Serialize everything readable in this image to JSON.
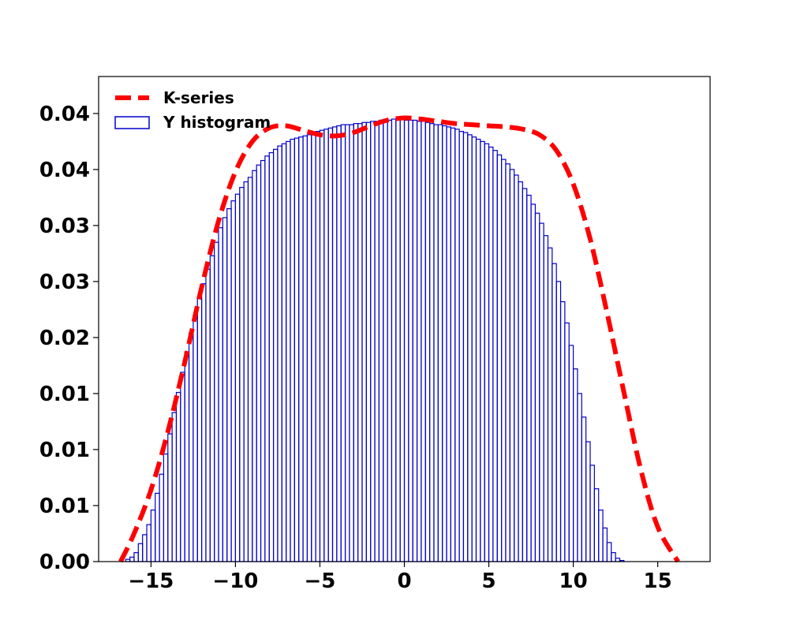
{
  "chart_data": {
    "type": "bar",
    "title": "",
    "xlabel": "",
    "ylabel": "",
    "xlim": [
      -18.1,
      18.1
    ],
    "ylim": [
      0,
      0.0433
    ],
    "xticks": [
      -15,
      -10,
      -5,
      0,
      5,
      10,
      15
    ],
    "xtick_labels": [
      "−15",
      "−10",
      "−5",
      "0",
      "5",
      "10",
      "15"
    ],
    "yticks": [
      0,
      0.005,
      0.01,
      0.015,
      0.02,
      0.025,
      0.03,
      0.035,
      0.04
    ],
    "ytick_labels": [
      "0.00",
      "0.01",
      "0.01",
      "0.01",
      "0.02",
      "0.03",
      "0.03",
      "0.04",
      "0.04"
    ],
    "grid": false,
    "legend_position": "top-left",
    "colors": {
      "histogram": "#0000cc",
      "curve": "#ff0000"
    },
    "series": [
      {
        "name": "Y histogram",
        "kind": "histogram",
        "bin_start": -16.5,
        "bin_width": 0.25,
        "values": [
          0.0002,
          0.0004,
          0.0008,
          0.0016,
          0.0024,
          0.0033,
          0.0046,
          0.0061,
          0.0078,
          0.0096,
          0.0114,
          0.0133,
          0.0151,
          0.0169,
          0.0187,
          0.0204,
          0.022,
          0.0235,
          0.0248,
          0.0261,
          0.0273,
          0.0285,
          0.0298,
          0.0307,
          0.0315,
          0.0322,
          0.0328,
          0.0334,
          0.0339,
          0.0343,
          0.0349,
          0.0354,
          0.0358,
          0.0362,
          0.0365,
          0.0368,
          0.0371,
          0.0373,
          0.0375,
          0.0377,
          0.0378,
          0.0379,
          0.038,
          0.0381,
          0.0383,
          0.0384,
          0.0385,
          0.0386,
          0.0387,
          0.0388,
          0.0389,
          0.039,
          0.039,
          0.039,
          0.0391,
          0.0391,
          0.0392,
          0.0392,
          0.0393,
          0.0393,
          0.0394,
          0.0394,
          0.0394,
          0.0395,
          0.0395,
          0.0395,
          0.0394,
          0.0394,
          0.0394,
          0.0393,
          0.0393,
          0.0392,
          0.0391,
          0.039,
          0.039,
          0.0389,
          0.0388,
          0.0387,
          0.0386,
          0.0384,
          0.0383,
          0.0381,
          0.0379,
          0.0377,
          0.0375,
          0.0373,
          0.037,
          0.0367,
          0.0363,
          0.0359,
          0.0355,
          0.035,
          0.0345,
          0.0339,
          0.0333,
          0.0327,
          0.0319,
          0.0311,
          0.0302,
          0.0291,
          0.028,
          0.0266,
          0.025,
          0.0232,
          0.0213,
          0.0193,
          0.0172,
          0.015,
          0.0129,
          0.0107,
          0.0086,
          0.0065,
          0.0046,
          0.003,
          0.0017,
          0.0008,
          0.0003,
          0.0001
        ]
      },
      {
        "name": "K-series",
        "kind": "line",
        "x": [
          -16.8,
          -16.0,
          -15.0,
          -14.0,
          -13.0,
          -12.0,
          -11.0,
          -10.0,
          -9.0,
          -8.0,
          -7.0,
          -6.0,
          -5.0,
          -4.0,
          -3.0,
          -2.0,
          -1.0,
          0.0,
          1.0,
          2.0,
          3.0,
          4.0,
          5.0,
          6.0,
          7.0,
          8.0,
          9.0,
          10.0,
          11.0,
          12.0,
          13.0,
          14.0,
          15.0,
          16.2
        ],
        "y": [
          0.0,
          0.0025,
          0.0064,
          0.0116,
          0.0178,
          0.0245,
          0.0304,
          0.0348,
          0.0375,
          0.0387,
          0.0389,
          0.0385,
          0.0381,
          0.038,
          0.0383,
          0.0389,
          0.0394,
          0.0396,
          0.0395,
          0.0393,
          0.0391,
          0.039,
          0.0389,
          0.0388,
          0.0386,
          0.0381,
          0.0367,
          0.0337,
          0.0288,
          0.0222,
          0.0151,
          0.0082,
          0.0031,
          0.0
        ]
      }
    ]
  }
}
